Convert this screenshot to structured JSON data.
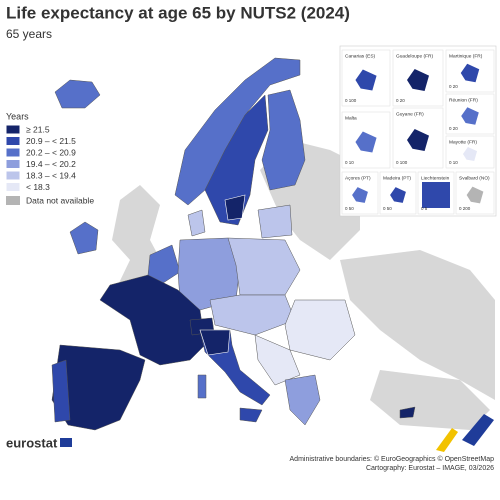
{
  "title": "Life expectancy at age 65 by NUTS2 (2024)",
  "subtitle": "65 years",
  "legend": {
    "title": "Years",
    "items": [
      {
        "label": "≥ 21.5",
        "color": "#142469"
      },
      {
        "label": "20.9 – < 21.5",
        "color": "#2f48ab"
      },
      {
        "label": "20.2 – < 20.9",
        "color": "#5670c9"
      },
      {
        "label": "19.4 – < 20.2",
        "color": "#8e9edd"
      },
      {
        "label": "18.3 – < 19.4",
        "color": "#bcc5eb"
      },
      {
        "label": "< 18.3",
        "color": "#e5e8f6"
      }
    ],
    "not_available": {
      "label": "Data not available",
      "color": "#b4b4b4"
    }
  },
  "insets": [
    {
      "label": "Canarias (ES)",
      "scale": "0 100"
    },
    {
      "label": "Guadeloupe (FR)",
      "scale": "0 20"
    },
    {
      "label": "Martinique (FR)",
      "scale": "0 20"
    },
    {
      "label": "Réunion (FR)",
      "scale": "0 20"
    },
    {
      "label": "Malta",
      "scale": "0 10"
    },
    {
      "label": "Guyane (FR)",
      "scale": "0 100"
    },
    {
      "label": "Mayotte (FR)",
      "scale": "0 10"
    },
    {
      "label": "Açores (PT)",
      "scale": "0 50"
    },
    {
      "label": "Madeira (PT)",
      "scale": "0 50"
    },
    {
      "label": "Liechtenstein",
      "scale": "0 5"
    },
    {
      "label": "Svalbard (NO)",
      "scale": "0 200"
    }
  ],
  "footer": {
    "logo": "eurostat",
    "sources": [
      "Administrative boundaries: © EuroGeographics © OpenStreetMap",
      "Cartography: Eurostat – IMAGE, 03/2026"
    ]
  }
}
